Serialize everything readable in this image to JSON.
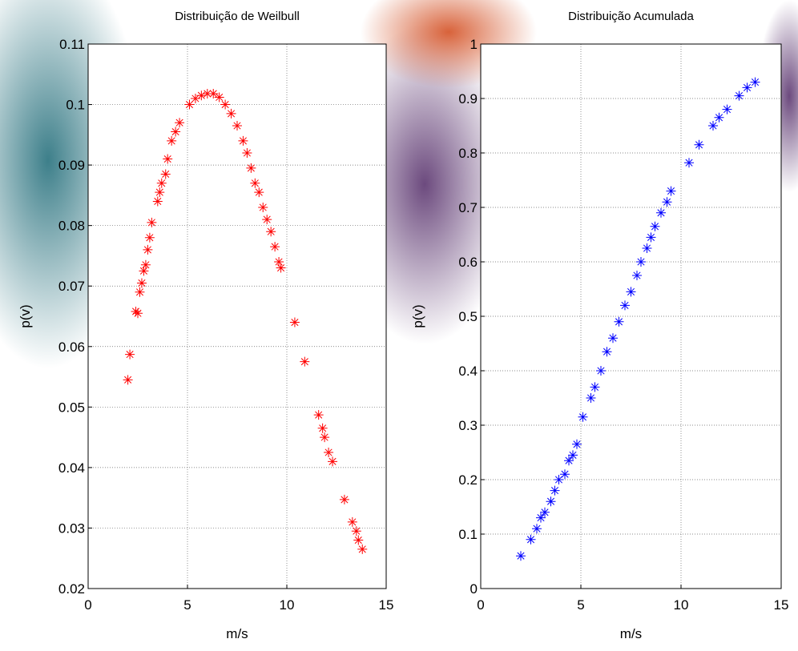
{
  "chart_data": [
    {
      "type": "scatter",
      "title": "Distribuição de Weilbull",
      "x_label": "m/s",
      "y_label": "p(v)",
      "xlim": [
        0,
        15
      ],
      "ylim": [
        0.02,
        0.11
      ],
      "xticks": [
        0,
        5,
        10,
        15
      ],
      "yticks": [
        0.02,
        0.03,
        0.04,
        0.05,
        0.06,
        0.07,
        0.08,
        0.09,
        0.1,
        0.11
      ],
      "grid": true,
      "series": [
        {
          "color": "#ff0000",
          "x": [
            2.0,
            2.1,
            2.4,
            2.5,
            2.6,
            2.7,
            2.8,
            2.9,
            3.0,
            3.1,
            3.2,
            3.5,
            3.6,
            3.7,
            3.9,
            4.0,
            4.2,
            4.4,
            4.6,
            5.1,
            5.4,
            5.7,
            6.0,
            6.3,
            6.6,
            6.9,
            7.2,
            7.5,
            7.8,
            8.0,
            8.2,
            8.4,
            8.6,
            8.8,
            9.0,
            9.2,
            9.4,
            9.6,
            9.7,
            10.4,
            10.9,
            11.6,
            11.8,
            11.9,
            12.1,
            12.3,
            12.9,
            13.3,
            13.5,
            13.6,
            13.8
          ],
          "values": [
            0.0545,
            0.0587,
            0.0658,
            0.0655,
            0.069,
            0.0705,
            0.0725,
            0.0735,
            0.076,
            0.078,
            0.0805,
            0.084,
            0.0855,
            0.087,
            0.0885,
            0.091,
            0.094,
            0.0955,
            0.097,
            0.1,
            0.101,
            0.1015,
            0.1018,
            0.1018,
            0.1012,
            0.1,
            0.0985,
            0.0965,
            0.094,
            0.092,
            0.0895,
            0.087,
            0.0855,
            0.083,
            0.081,
            0.079,
            0.0765,
            0.074,
            0.073,
            0.064,
            0.0575,
            0.0487,
            0.0465,
            0.045,
            0.0425,
            0.041,
            0.0347,
            0.031,
            0.0295,
            0.028,
            0.0265
          ]
        }
      ]
    },
    {
      "type": "scatter",
      "title": "Distribuição Acumulada",
      "x_label": "m/s",
      "y_label": "p(v)",
      "xlim": [
        0,
        15
      ],
      "ylim": [
        0,
        1
      ],
      "xticks": [
        0,
        5,
        10,
        15
      ],
      "yticks": [
        0,
        0.1,
        0.2,
        0.3,
        0.4,
        0.5,
        0.6,
        0.7,
        0.8,
        0.9,
        1
      ],
      "grid": true,
      "series": [
        {
          "color": "#0000ff",
          "x": [
            2.0,
            2.5,
            2.8,
            3.0,
            3.2,
            3.5,
            3.7,
            3.9,
            4.2,
            4.4,
            4.6,
            4.8,
            5.1,
            5.5,
            5.7,
            6.0,
            6.3,
            6.6,
            6.9,
            7.2,
            7.5,
            7.8,
            8.0,
            8.3,
            8.5,
            8.7,
            9.0,
            9.3,
            9.5,
            10.4,
            10.9,
            11.6,
            11.9,
            12.3,
            12.9,
            13.3,
            13.7
          ],
          "values": [
            0.06,
            0.09,
            0.11,
            0.13,
            0.14,
            0.16,
            0.18,
            0.2,
            0.21,
            0.235,
            0.245,
            0.265,
            0.315,
            0.35,
            0.37,
            0.4,
            0.435,
            0.46,
            0.49,
            0.52,
            0.545,
            0.575,
            0.6,
            0.625,
            0.645,
            0.665,
            0.69,
            0.71,
            0.73,
            0.782,
            0.815,
            0.85,
            0.865,
            0.88,
            0.905,
            0.92,
            0.93
          ]
        }
      ]
    }
  ]
}
